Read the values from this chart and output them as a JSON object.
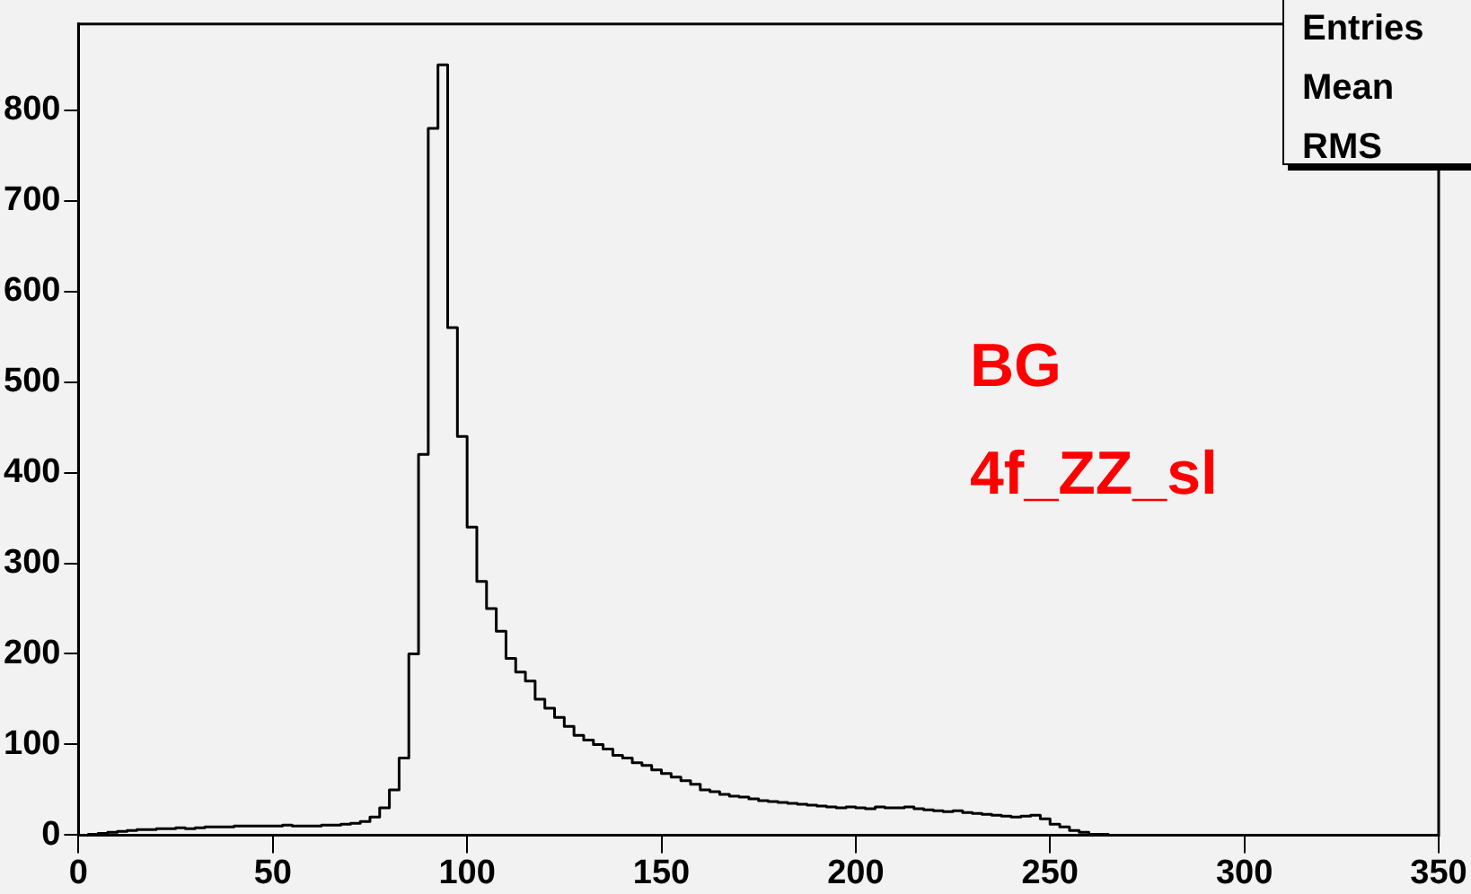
{
  "chart_data": {
    "type": "histogram",
    "bins": [
      0,
      2.5,
      5,
      7.5,
      10,
      12.5,
      15,
      17.5,
      20,
      22.5,
      25,
      27.5,
      30,
      32.5,
      35,
      37.5,
      40,
      42.5,
      45,
      47.5,
      50,
      52.5,
      55,
      57.5,
      60,
      62.5,
      65,
      67.5,
      70,
      72.5,
      75,
      77.5,
      80,
      82.5,
      85,
      87.5,
      90,
      92.5,
      95,
      97.5,
      100,
      102.5,
      105,
      107.5,
      110,
      112.5,
      115,
      117.5,
      120,
      122.5,
      125,
      127.5,
      130,
      132.5,
      135,
      137.5,
      140,
      142.5,
      145,
      147.5,
      150,
      152.5,
      155,
      157.5,
      160,
      162.5,
      165,
      167.5,
      170,
      172.5,
      175,
      177.5,
      180,
      182.5,
      185,
      187.5,
      190,
      192.5,
      195,
      197.5,
      200,
      202.5,
      205,
      207.5,
      210,
      212.5,
      215,
      217.5,
      220,
      222.5,
      225,
      227.5,
      230,
      232.5,
      235,
      237.5,
      240,
      242.5,
      245,
      247.5,
      250,
      252.5,
      255,
      257.5,
      260,
      262.5,
      265,
      267.5,
      270,
      272.5,
      275,
      277.5,
      280,
      282.5,
      285,
      287.5,
      290,
      292.5,
      295,
      297.5,
      300,
      302.5,
      305,
      307.5,
      310,
      312.5,
      315,
      317.5,
      320,
      322.5,
      325,
      327.5,
      330,
      332.5,
      335,
      337.5,
      340,
      342.5,
      345,
      347.5,
      350
    ],
    "values": [
      0,
      1,
      2,
      3,
      4,
      5,
      6,
      6,
      7,
      7,
      8,
      7,
      8,
      9,
      9,
      9,
      10,
      10,
      10,
      10,
      10,
      11,
      10,
      10,
      10,
      11,
      11,
      12,
      13,
      15,
      20,
      30,
      50,
      85,
      200,
      420,
      780,
      850,
      560,
      440,
      340,
      280,
      250,
      225,
      195,
      180,
      170,
      150,
      140,
      130,
      120,
      110,
      105,
      100,
      95,
      88,
      85,
      80,
      77,
      72,
      68,
      64,
      60,
      56,
      50,
      48,
      45,
      43,
      42,
      40,
      38,
      37,
      36,
      35,
      34,
      33,
      32,
      31,
      30,
      31,
      30,
      29,
      31,
      30,
      30,
      31,
      29,
      28,
      27,
      26,
      27,
      25,
      24,
      23,
      22,
      21,
      20,
      21,
      22,
      18,
      12,
      9,
      5,
      3,
      1,
      1,
      0,
      0,
      0,
      0,
      0,
      0,
      0,
      0,
      0,
      0,
      0,
      0,
      0,
      0,
      0,
      0,
      0,
      0,
      0,
      0,
      0,
      0,
      0,
      0,
      0,
      0,
      0,
      0,
      0,
      0,
      0,
      0,
      0,
      0
    ],
    "color": "#000000",
    "xlim": [
      0,
      350
    ],
    "xticks": [
      0,
      50,
      100,
      150,
      200,
      250,
      300,
      350
    ],
    "ylim": [
      0,
      895
    ],
    "yticks": [
      0,
      100,
      200,
      300,
      400,
      500,
      600,
      700,
      800
    ],
    "grid": false,
    "legend": false,
    "annotations": [
      "Entries",
      "Mean",
      "RMS",
      "BG",
      "4f_ZZ_sl"
    ]
  }
}
